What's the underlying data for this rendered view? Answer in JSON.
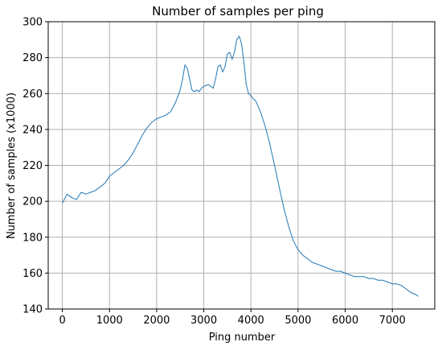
{
  "chart_data": {
    "type": "line",
    "title": "Number of samples per ping",
    "xlabel": "Ping number",
    "ylabel": "Number of samples (x1000)",
    "xlim": [
      -300,
      7900
    ],
    "ylim": [
      140,
      300
    ],
    "xticks": [
      0,
      1000,
      2000,
      3000,
      4000,
      5000,
      6000,
      7000
    ],
    "yticks": [
      140,
      160,
      180,
      200,
      220,
      240,
      260,
      280,
      300
    ],
    "grid": true,
    "series": [
      {
        "color": "#1f77b4",
        "x": [
          0,
          100,
          200,
          300,
          400,
          500,
          600,
          700,
          800,
          900,
          1000,
          1100,
          1200,
          1300,
          1400,
          1500,
          1600,
          1700,
          1800,
          1900,
          2000,
          2100,
          2200,
          2300,
          2400,
          2500,
          2550,
          2600,
          2650,
          2700,
          2750,
          2800,
          2850,
          2900,
          2950,
          3000,
          3100,
          3200,
          3250,
          3300,
          3350,
          3400,
          3450,
          3500,
          3550,
          3600,
          3650,
          3700,
          3750,
          3800,
          3850,
          3900,
          3950,
          4000,
          4050,
          4100,
          4200,
          4300,
          4400,
          4500,
          4600,
          4700,
          4800,
          4900,
          5000,
          5100,
          5200,
          5300,
          5400,
          5500,
          5600,
          5700,
          5800,
          5900,
          6000,
          6100,
          6200,
          6300,
          6400,
          6500,
          6600,
          6700,
          6800,
          6900,
          7000,
          7100,
          7200,
          7300,
          7400,
          7500,
          7550
        ],
        "y": [
          199,
          204,
          202,
          201,
          205,
          204,
          205,
          206,
          208,
          210,
          214,
          216,
          218,
          220,
          223,
          227,
          232,
          237,
          241,
          244,
          246,
          247,
          248,
          250,
          255,
          262,
          268,
          276,
          274,
          268,
          262,
          261,
          262,
          261,
          263,
          264,
          265,
          263,
          268,
          275,
          276,
          272,
          275,
          282,
          283,
          279,
          283,
          290,
          292,
          288,
          278,
          265,
          260,
          259,
          257,
          256,
          250,
          242,
          232,
          220,
          208,
          196,
          186,
          178,
          173,
          170,
          168,
          166,
          165,
          164,
          163,
          162,
          161,
          161,
          160,
          159,
          158,
          158,
          158,
          157,
          157,
          156,
          156,
          155,
          154,
          154,
          153,
          151,
          149,
          148,
          147
        ]
      }
    ]
  }
}
